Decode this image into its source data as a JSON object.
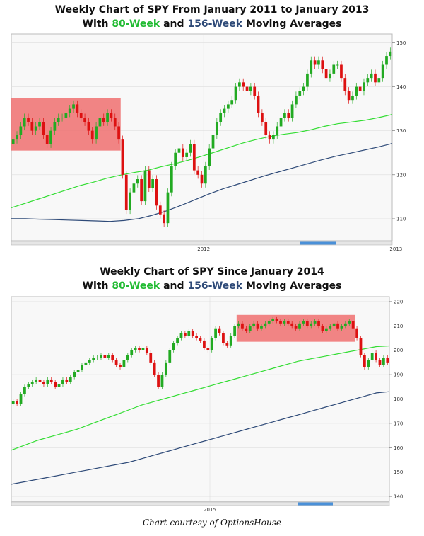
{
  "charts": [
    {
      "title_line1": "Weekly Chart of SPY From January 2011 to January 2013",
      "title_with": "With",
      "title_ma80": "80-Week",
      "title_and": "and",
      "title_ma156": "156-Week",
      "title_tail": "Moving Averages"
    },
    {
      "title_line1": "Weekly Chart of SPY Since January 2014",
      "title_with": "With",
      "title_ma80": "80-Week",
      "title_and": "and",
      "title_ma156": "156-Week",
      "title_tail": "Moving Averages"
    }
  ],
  "caption": "Chart courtesy of OptionsHouse",
  "colors": {
    "up": "#22aa22",
    "down": "#dd1111",
    "ma80": "#33dd33",
    "ma156": "#2e4a78",
    "highlight": "#f07070",
    "plot_bg": "#f8f8f8",
    "grid": "#dddddd"
  },
  "chart_data": [
    {
      "type": "candlestick",
      "title": "Weekly Chart of SPY From January 2011 to January 2013",
      "subtitle": "With 80-Week and 156-Week Moving Averages",
      "y_ticks": [
        110,
        120,
        130,
        140,
        150
      ],
      "ylim": [
        105,
        152
      ],
      "x_ticks": [
        "2012",
        "2013"
      ],
      "x_tick_weeks": [
        51,
        102
      ],
      "highlight": {
        "week_start": 0,
        "week_end": 29,
        "y_low": 125.5,
        "y_high": 137.5
      },
      "weekly_close": [
        128,
        129,
        131,
        133,
        132,
        130,
        131,
        132,
        129,
        127,
        130,
        132,
        133,
        133,
        134,
        135,
        136,
        134,
        133,
        132,
        130,
        128,
        131,
        133,
        132,
        134,
        133,
        131,
        128,
        120,
        112,
        116,
        118,
        119,
        114,
        121,
        117,
        119,
        113,
        111,
        109,
        116,
        122,
        125,
        126,
        124,
        125,
        127,
        121,
        120,
        118,
        122,
        126,
        129,
        132,
        134,
        135,
        136,
        137,
        140,
        141,
        140,
        139,
        140,
        138,
        134,
        132,
        129,
        128,
        129,
        131,
        133,
        134,
        133,
        136,
        138,
        139,
        140,
        143,
        146,
        145,
        146,
        144,
        142,
        143,
        145,
        145,
        142,
        139,
        137,
        138,
        140,
        139,
        141,
        142,
        143,
        141,
        142,
        145,
        147,
        148
      ],
      "series": [
        {
          "name": "80-Week",
          "values": [
            112.5,
            113.5,
            114.5,
            115.5,
            116.5,
            117.5,
            118.3,
            119.2,
            119.9,
            120.5,
            121.0,
            121.8,
            122.5,
            123.3,
            124.2,
            125.2,
            126.2,
            127.2,
            128.0,
            128.7,
            129.2,
            129.6,
            130.2,
            131.0,
            131.6,
            132.0,
            132.4,
            133.0,
            133.7
          ]
        },
        {
          "name": "156-Week",
          "values": [
            110.0,
            110.0,
            109.9,
            109.8,
            109.7,
            109.6,
            109.5,
            109.4,
            109.6,
            110.0,
            110.8,
            111.8,
            113.0,
            114.3,
            115.6,
            116.8,
            117.8,
            118.8,
            119.8,
            120.7,
            121.6,
            122.5,
            123.4,
            124.2,
            124.9,
            125.6,
            126.3,
            127.1
          ]
        }
      ]
    },
    {
      "type": "candlestick",
      "title": "Weekly Chart of SPY Since January 2014",
      "subtitle": "With 80-Week and 156-Week Moving Averages",
      "y_ticks": [
        140,
        150,
        160,
        170,
        180,
        190,
        200,
        210,
        220
      ],
      "ylim": [
        138,
        222
      ],
      "x_ticks": [
        "2015"
      ],
      "x_tick_weeks": [
        52
      ],
      "highlight": {
        "week_start": 59,
        "week_end": 90,
        "y_low": 203.5,
        "y_high": 214.5
      },
      "weekly_close": [
        179,
        178,
        182,
        185,
        186,
        187,
        188,
        187,
        186,
        188,
        187,
        185,
        186,
        188,
        187,
        189,
        191,
        192,
        194,
        195,
        196,
        197,
        197,
        198,
        197,
        198,
        196,
        194,
        193,
        196,
        198,
        200,
        201,
        200,
        201,
        199,
        195,
        190,
        185,
        190,
        195,
        200,
        203,
        205,
        207,
        206,
        208,
        206,
        205,
        204,
        201,
        200,
        205,
        209,
        207,
        203,
        202,
        206,
        210,
        211,
        209,
        208,
        210,
        211,
        209,
        210,
        211,
        212,
        213,
        212,
        211,
        212,
        211,
        210,
        209,
        211,
        212,
        210,
        211,
        212,
        210,
        208,
        209,
        210,
        211,
        209,
        210,
        211,
        212,
        209,
        205,
        198,
        193,
        196,
        199,
        196,
        194,
        197,
        195
      ],
      "series": [
        {
          "name": "80-Week",
          "values": [
            159,
            161,
            163,
            164.5,
            166,
            167.5,
            169.5,
            171.5,
            173.5,
            175.5,
            177.5,
            179,
            180.5,
            182,
            183.5,
            185,
            186.5,
            188,
            189.5,
            191,
            192.5,
            194,
            195.5,
            196.5,
            197.5,
            198.5,
            199.5,
            200.5,
            201.5,
            201.8
          ]
        },
        {
          "name": "156-Week",
          "values": [
            145,
            146,
            147,
            148,
            149,
            150,
            151,
            152,
            153,
            154,
            155.5,
            157,
            158.5,
            160,
            161.5,
            163,
            164.5,
            166,
            167.5,
            169,
            170.5,
            172,
            173.5,
            175,
            176.5,
            178,
            179.5,
            181,
            182.5,
            183
          ]
        }
      ]
    }
  ]
}
